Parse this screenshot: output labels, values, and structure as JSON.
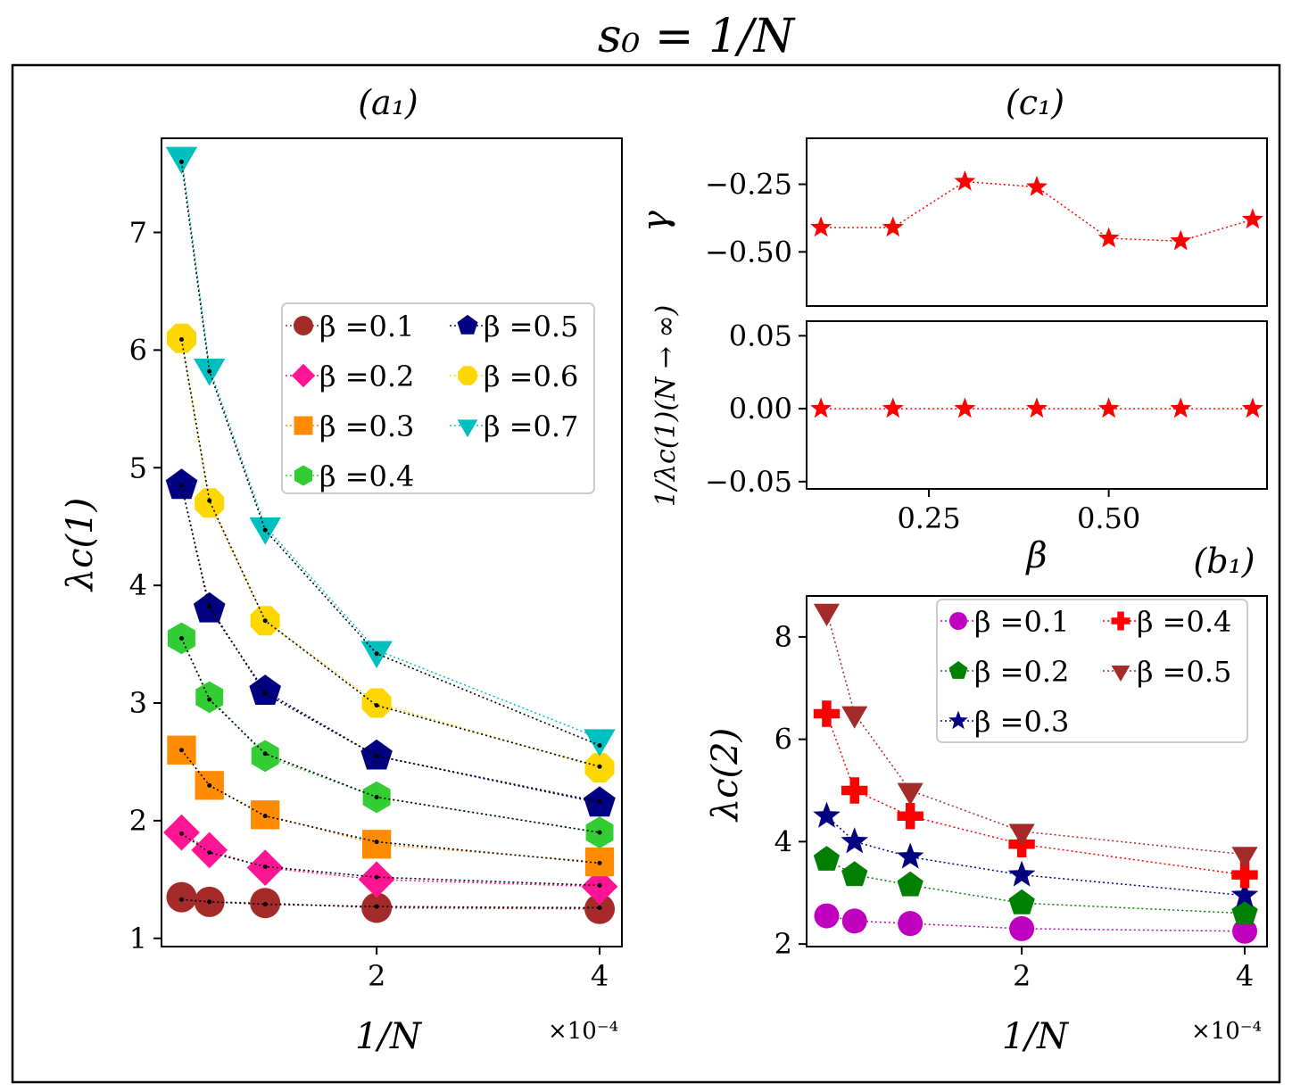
{
  "figure_title": "s₀ = 1/N",
  "chart_data": [
    {
      "panel": "(a₁)",
      "type": "line",
      "xlabel": "1/N",
      "ylabel": "λc(1)",
      "x_multiplier": "×10⁻⁴",
      "xlim": [
        0.07,
        4.2
      ],
      "ylim": [
        0.93,
        7.8
      ],
      "xticks": [
        2,
        4
      ],
      "yticks": [
        1,
        2,
        3,
        4,
        5,
        6,
        7
      ],
      "x": [
        0.25,
        0.5,
        1.0,
        2.0,
        4.0
      ],
      "legend": {
        "placement": "center-right",
        "ncol": 2
      },
      "series": [
        {
          "name": "β =0.1",
          "marker": "circle",
          "color": "#a52a2a",
          "values": [
            1.35,
            1.31,
            1.3,
            1.26,
            1.25
          ],
          "fit": [
            1.33,
            1.31,
            1.29,
            1.27,
            1.26
          ]
        },
        {
          "name": "β =0.2",
          "marker": "diamond",
          "color": "#ff1493",
          "values": [
            1.9,
            1.75,
            1.6,
            1.5,
            1.44
          ],
          "fit": [
            1.89,
            1.73,
            1.61,
            1.52,
            1.45
          ]
        },
        {
          "name": "β =0.3",
          "marker": "square",
          "color": "#ff8c00",
          "values": [
            2.6,
            2.3,
            2.05,
            1.8,
            1.65
          ],
          "fit": [
            2.6,
            2.3,
            2.04,
            1.82,
            1.64
          ]
        },
        {
          "name": "β =0.4",
          "marker": "hexagon",
          "color": "#32cd32",
          "values": [
            3.55,
            3.05,
            2.55,
            2.2,
            1.9
          ],
          "fit": [
            3.55,
            3.03,
            2.57,
            2.2,
            1.9
          ]
        },
        {
          "name": "β =0.5",
          "marker": "pentagon",
          "color": "#000080",
          "values": [
            4.85,
            3.8,
            3.1,
            2.55,
            2.15
          ],
          "fit": [
            4.85,
            3.82,
            3.08,
            2.55,
            2.16
          ]
        },
        {
          "name": "β =0.6",
          "marker": "octagon",
          "color": "#ffd700",
          "values": [
            6.1,
            4.7,
            3.7,
            3.0,
            2.45
          ],
          "fit": [
            6.09,
            4.72,
            3.7,
            2.98,
            2.46
          ]
        },
        {
          "name": "β =0.7",
          "marker": "triangle-down",
          "color": "#00bfbf",
          "values": [
            7.65,
            5.85,
            4.5,
            3.45,
            2.7
          ],
          "fit": [
            7.6,
            5.82,
            4.47,
            3.42,
            2.64
          ]
        }
      ]
    },
    {
      "panel": "(c₁)",
      "type": "line",
      "ylabel": "γ",
      "xlim": [
        0.08,
        0.72
      ],
      "ylim": [
        -0.7,
        -0.08
      ],
      "yticks": [
        "−0.25",
        "−0.50"
      ],
      "ytick_values": [
        -0.25,
        -0.5
      ],
      "marker": "star",
      "color": "#ff0000",
      "x": [
        0.1,
        0.2,
        0.3,
        0.4,
        0.5,
        0.6,
        0.7
      ],
      "values": [
        -0.41,
        -0.41,
        -0.24,
        -0.26,
        -0.45,
        -0.46,
        -0.38
      ]
    },
    {
      "type": "line",
      "ylabel": "1/λc(1)(N → ∞)",
      "xlabel": "β",
      "xlim": [
        0.08,
        0.72
      ],
      "ylim": [
        -0.055,
        0.06
      ],
      "xticks": [
        "0.25",
        "0.50"
      ],
      "xtick_values": [
        0.25,
        0.5
      ],
      "yticks": [
        "0.05",
        "0.00",
        "−0.05"
      ],
      "ytick_values": [
        0.05,
        0.0,
        -0.05
      ],
      "marker": "star",
      "color": "#ff0000",
      "x": [
        0.1,
        0.2,
        0.3,
        0.4,
        0.5,
        0.6,
        0.7
      ],
      "values": [
        0,
        0,
        0,
        0,
        0,
        0,
        0
      ]
    },
    {
      "panel": "(b₁)",
      "type": "line",
      "xlabel": "1/N",
      "ylabel": "λc(2)",
      "x_multiplier": "×10⁻⁴",
      "xlim": [
        0.07,
        4.2
      ],
      "ylim": [
        1.95,
        8.8
      ],
      "xticks": [
        2,
        4
      ],
      "yticks": [
        2,
        4,
        6,
        8
      ],
      "x": [
        0.25,
        0.5,
        1.0,
        2.0,
        4.0
      ],
      "legend": {
        "placement": "top-right",
        "ncol": 2
      },
      "series": [
        {
          "name": "β =0.1",
          "marker": "circle",
          "color": "#bf00bf",
          "values": [
            2.55,
            2.45,
            2.4,
            2.3,
            2.25
          ]
        },
        {
          "name": "β =0.2",
          "marker": "pentagon",
          "color": "#008000",
          "values": [
            3.65,
            3.35,
            3.15,
            2.8,
            2.6
          ]
        },
        {
          "name": "β =0.3",
          "marker": "star",
          "color": "#000080",
          "values": [
            4.5,
            4.0,
            3.7,
            3.35,
            2.95
          ]
        },
        {
          "name": "β =0.4",
          "marker": "plus",
          "color": "#ff0000",
          "values": [
            6.5,
            5.0,
            4.5,
            3.95,
            3.35
          ]
        },
        {
          "name": "β =0.5",
          "marker": "triangle-down",
          "color": "#a52a2a",
          "values": [
            8.5,
            6.5,
            5.0,
            4.2,
            3.75
          ]
        }
      ]
    }
  ]
}
